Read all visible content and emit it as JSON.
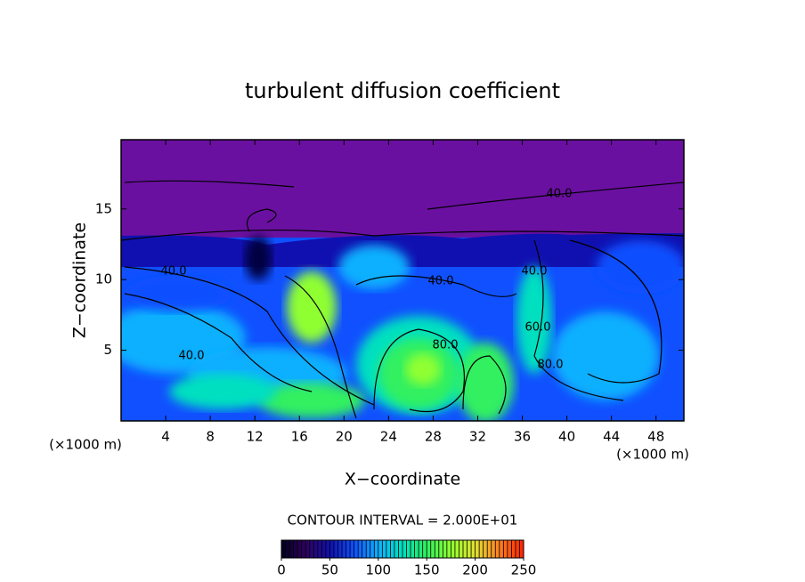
{
  "chart_data": {
    "type": "contour",
    "title": "turbulent diffusion coefficient",
    "xlabel": "X−coordinate",
    "ylabel": "Z−coordinate",
    "xunit": "(×1000 m)",
    "xlim": [
      0,
      50.5
    ],
    "ylim": [
      0,
      19.9
    ],
    "xticks": [
      4,
      8,
      12,
      16,
      20,
      24,
      28,
      32,
      36,
      40,
      44,
      48
    ],
    "yticks": [
      5,
      10,
      15
    ],
    "contour_interval_text": "CONTOUR INTERVAL = 2.000E+01",
    "annotations": [
      "40.0",
      "40.0",
      "40.0",
      "80.0",
      "40.0",
      "80.0",
      "60.0",
      "40.0"
    ],
    "colormap": [
      "#000020",
      "#300060",
      "#1010b0",
      "#1050ff",
      "#10b0ff",
      "#00e0c0",
      "#30f060",
      "#90ff30",
      "#e0e030",
      "#ff8020",
      "#ff2000"
    ],
    "colorbar_lim": [
      0,
      250
    ],
    "colorbar_ticks": [
      0,
      50,
      100,
      150,
      200,
      250
    ]
  }
}
